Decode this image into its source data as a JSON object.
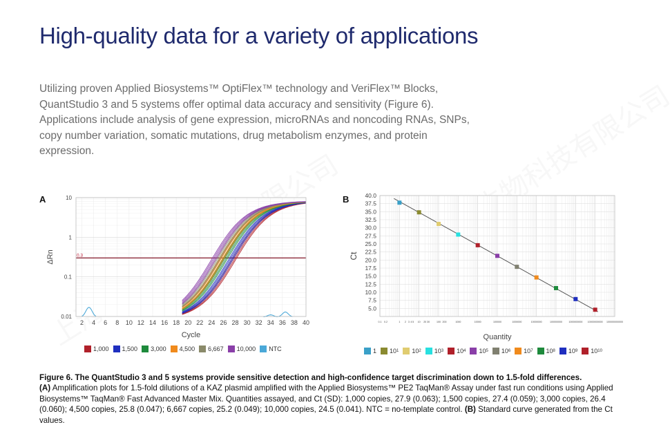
{
  "title": "High-quality data for a variety of applications",
  "intro": "Utilizing proven Applied Biosystems™ OptiFlex™ technology and VeriFlex™ Blocks, QuantStudio 3 and 5 systems offer optimal data accuracy and sensitivity (Figure 6). Applications include analysis of gene expression, microRNAs and noncoding RNAs, SNPs, copy number variation, somatic mutations, drug metabolism enzymes, and protein expression.",
  "watermark": "上海臻诺生物科技有限公司",
  "caption": {
    "bold_title": "Figure 6. The QuantStudio 3 and 5 systems provide sensitive detection and high-confidence target discrimination down to 1.5-fold differences.",
    "part_a_label": "(A)",
    "part_a_text": " Amplification plots for 1.5-fold dilutions of a KAZ plasmid amplified with the Applied Biosystems™ PE2 TaqMan® Assay under fast run conditions using Applied Biosystems™ TaqMan® Fast Advanced Master Mix. Quantities assayed, and Ct (SD): 1,000 copies, 27.9 (0.063); 1,500 copies, 27.4 (0.059); 3,000 copies, 26.4 (0.060); 4,500 copies, 25.8 (0.047); 6,667 copies, 25.2 (0.049); 10,000 copies, 24.5 (0.041). NTC = no-template control.",
    "part_b_label": "(B)",
    "part_b_text": " Standard curve generated from the Ct values."
  },
  "chart_data": [
    {
      "panel": "A",
      "type": "line",
      "xlabel": "Cycle",
      "ylabel": "ΔRn",
      "yscale": "log",
      "ylim": [
        0.01,
        10
      ],
      "xlim": [
        1,
        40
      ],
      "y_tick_labels": [
        "10",
        "1",
        "0.1",
        "0.01"
      ],
      "x_tick_labels": [
        "2",
        "4",
        "6",
        "8",
        "10",
        "12",
        "14",
        "16",
        "18",
        "20",
        "22",
        "24",
        "26",
        "28",
        "30",
        "32",
        "34",
        "36",
        "38",
        "40"
      ],
      "threshold": 0.3,
      "threshold_label": "0.3",
      "series": [
        {
          "name": "1,000",
          "color": "#b0202a",
          "ct": 27.9
        },
        {
          "name": "1,500",
          "color": "#1f2fbf",
          "ct": 27.4
        },
        {
          "name": "3,000",
          "color": "#1e8a3c",
          "ct": 26.4
        },
        {
          "name": "4,500",
          "color": "#f08a1c",
          "ct": 25.8
        },
        {
          "name": "6,667",
          "color": "#8a8a6a",
          "ct": 25.2
        },
        {
          "name": "10,000",
          "color": "#8a3fa8",
          "ct": 24.5
        },
        {
          "name": "NTC",
          "color": "#4aa8d8",
          "ct": null
        }
      ]
    },
    {
      "panel": "B",
      "type": "scatter",
      "xlabel": "Quantity",
      "ylabel": "Ct",
      "xscale": "log",
      "ylim": [
        2.5,
        40
      ],
      "y_tick_labels": [
        "40.0",
        "37.5",
        "35.0",
        "32.5",
        "30.0",
        "27.5",
        "25.0",
        "22.5",
        "20.0",
        "17.5",
        "15.0",
        "12.5",
        "10.0",
        "7.5",
        "5.0"
      ],
      "x_tick_labels": [
        "0.1",
        "0.2",
        "1",
        "2",
        "3",
        "4",
        "5",
        "10",
        "20",
        "30",
        "100",
        "200",
        "1000",
        "10000",
        "100000",
        "1000000",
        "10000000",
        "100000000",
        "1000000000",
        "10000000000",
        "100000000000"
      ],
      "points": [
        {
          "label": "1",
          "exponent": "",
          "x": 1,
          "y": 37.8,
          "color": "#3aa0c8"
        },
        {
          "label": "10",
          "exponent": "1",
          "x": 10,
          "y": 34.8,
          "color": "#8a8a30"
        },
        {
          "label": "10",
          "exponent": "2",
          "x": 100,
          "y": 31.2,
          "color": "#e0cc70"
        },
        {
          "label": "10",
          "exponent": "3",
          "x": 1000,
          "y": 27.9,
          "color": "#28e0e0"
        },
        {
          "label": "10",
          "exponent": "4",
          "x": 10000,
          "y": 24.6,
          "color": "#b0202a"
        },
        {
          "label": "10",
          "exponent": "5",
          "x": 100000,
          "y": 21.3,
          "color": "#8a3fa8"
        },
        {
          "label": "10",
          "exponent": "6",
          "x": 1000000,
          "y": 17.9,
          "color": "#808070"
        },
        {
          "label": "10",
          "exponent": "7",
          "x": 10000000,
          "y": 14.6,
          "color": "#f08a1c"
        },
        {
          "label": "10",
          "exponent": "8",
          "x": 100000000,
          "y": 11.3,
          "color": "#1e8a3c"
        },
        {
          "label": "10",
          "exponent": "9",
          "x": 1000000000,
          "y": 7.9,
          "color": "#1f2fbf"
        },
        {
          "label": "10",
          "exponent": "10",
          "x": 10000000000,
          "y": 4.6,
          "color": "#b0202a"
        }
      ]
    }
  ]
}
